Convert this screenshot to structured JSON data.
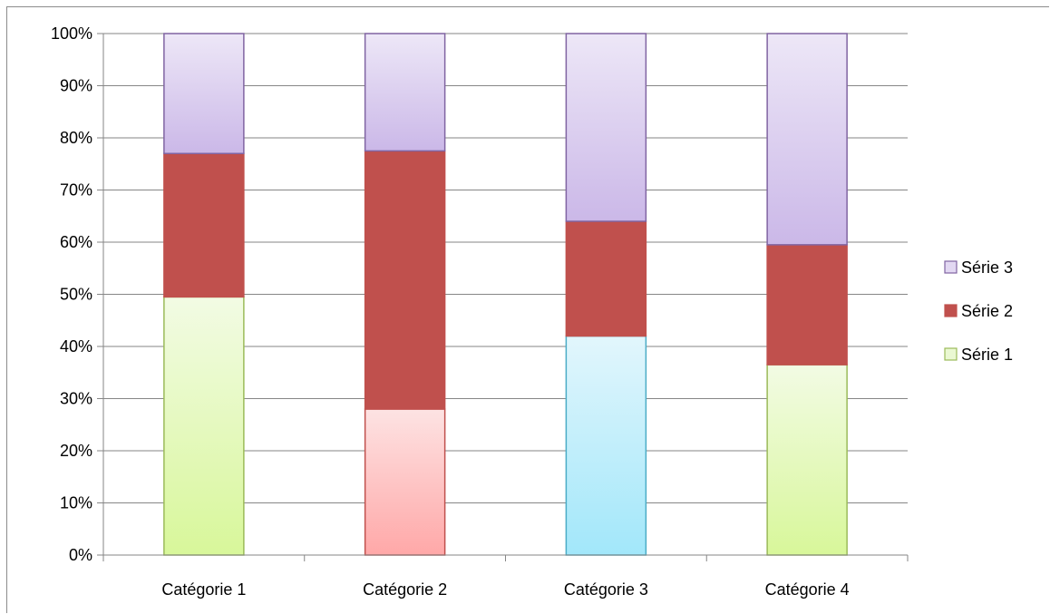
{
  "chart_data": {
    "type": "bar",
    "stacked": "percent",
    "categories": [
      "Catégorie 1",
      "Catégorie 2",
      "Catégorie 3",
      "Catégorie 4"
    ],
    "series": [
      {
        "name": "Série 1",
        "values": [
          49.5,
          28.0,
          42.0,
          36.5
        ]
      },
      {
        "name": "Série 2",
        "values": [
          27.5,
          49.5,
          22.0,
          23.0
        ]
      },
      {
        "name": "Série 3",
        "values": [
          23.0,
          22.5,
          36.0,
          40.5
        ]
      }
    ],
    "ylim": [
      0,
      100
    ],
    "yticks": [
      "0%",
      "10%",
      "20%",
      "30%",
      "40%",
      "50%",
      "60%",
      "70%",
      "80%",
      "90%",
      "100%"
    ],
    "grid": true,
    "legend": {
      "placement": "right",
      "entries": [
        "Série 3",
        "Série 2",
        "Série 1"
      ]
    },
    "colors": {
      "serie1_per_category": [
        {
          "top": "#f2fbe4",
          "bottom": "#d8f79a",
          "stroke": "#9bbb59"
        },
        {
          "top": "#fde3e3",
          "bottom": "#ffa8a8",
          "stroke": "#c0504d"
        },
        {
          "top": "#e2f6fc",
          "bottom": "#a2e7fa",
          "stroke": "#4bacc6"
        },
        {
          "top": "#f2fbe4",
          "bottom": "#d8f79a",
          "stroke": "#9bbb59"
        }
      ],
      "serie2": "#c0504d",
      "serie3_top": "#ede7f7",
      "serie3_bottom": "#cbb8e8",
      "serie3_stroke": "#8064a2",
      "legend_serie1_fill": "#eaf8d2",
      "legend_serie1_stroke": "#9bbb59",
      "legend_serie3_fill": "#e2d8f2",
      "legend_serie3_stroke": "#8064a2",
      "gridline": "#868686",
      "axis": "#868686"
    }
  }
}
